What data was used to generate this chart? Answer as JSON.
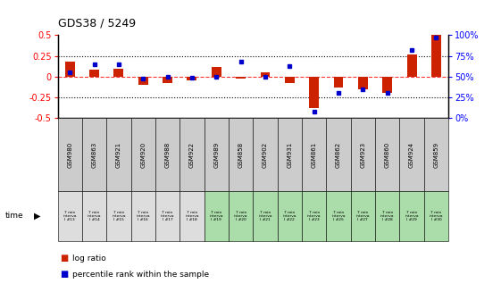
{
  "title": "GDS38 / 5249",
  "samples": [
    "GSM980",
    "GSM863",
    "GSM921",
    "GSM920",
    "GSM988",
    "GSM922",
    "GSM989",
    "GSM858",
    "GSM902",
    "GSM931",
    "GSM861",
    "GSM862",
    "GSM923",
    "GSM860",
    "GSM924",
    "GSM859"
  ],
  "intervals": [
    "7 min\ninterva\nl #13",
    "7 min\ninterva\nl #14",
    "7 min\ninterva\nl #15",
    "7 min\ninterva\nl #16",
    "7 min\ninterva\nl #17",
    "7 min\ninterva\nl #18",
    "7 min\ninterva\nl #19",
    "7 min\ninterva\nl #20",
    "7 min\ninterva\nl #21",
    "7 min\ninterva\nl #22",
    "7 min\ninterva\nl #23",
    "7 min\ninterva\nl #25",
    "7 min\ninterva\nl #27",
    "7 min\ninterva\nl #28",
    "7 min\ninterva\nl #29",
    "7 min\ninterva\nl #30"
  ],
  "log_ratio": [
    0.18,
    0.08,
    0.1,
    -0.1,
    -0.08,
    -0.04,
    0.12,
    -0.02,
    0.05,
    -0.08,
    -0.38,
    -0.13,
    -0.15,
    -0.2,
    0.27,
    0.5
  ],
  "percentile": [
    55,
    65,
    65,
    48,
    50,
    49,
    50,
    68,
    50,
    63,
    8,
    30,
    35,
    30,
    82,
    97
  ],
  "bar_color": "#cc2200",
  "dot_color": "#0000cc",
  "ylim_left": [
    -0.5,
    0.5
  ],
  "ylim_right": [
    0,
    100
  ],
  "yticks_left": [
    -0.5,
    -0.25,
    0,
    0.25,
    0.5
  ],
  "yticks_right": [
    0,
    25,
    50,
    75,
    100
  ],
  "bar_width": 0.4,
  "sample_row_color": "#cccccc",
  "interval_row_colors": [
    "#dddddd",
    "#dddddd",
    "#dddddd",
    "#dddddd",
    "#dddddd",
    "#dddddd",
    "#aaddaa",
    "#aaddaa",
    "#aaddaa",
    "#aaddaa",
    "#aaddaa",
    "#aaddaa",
    "#aaddaa",
    "#aaddaa",
    "#aaddaa",
    "#aaddaa"
  ]
}
